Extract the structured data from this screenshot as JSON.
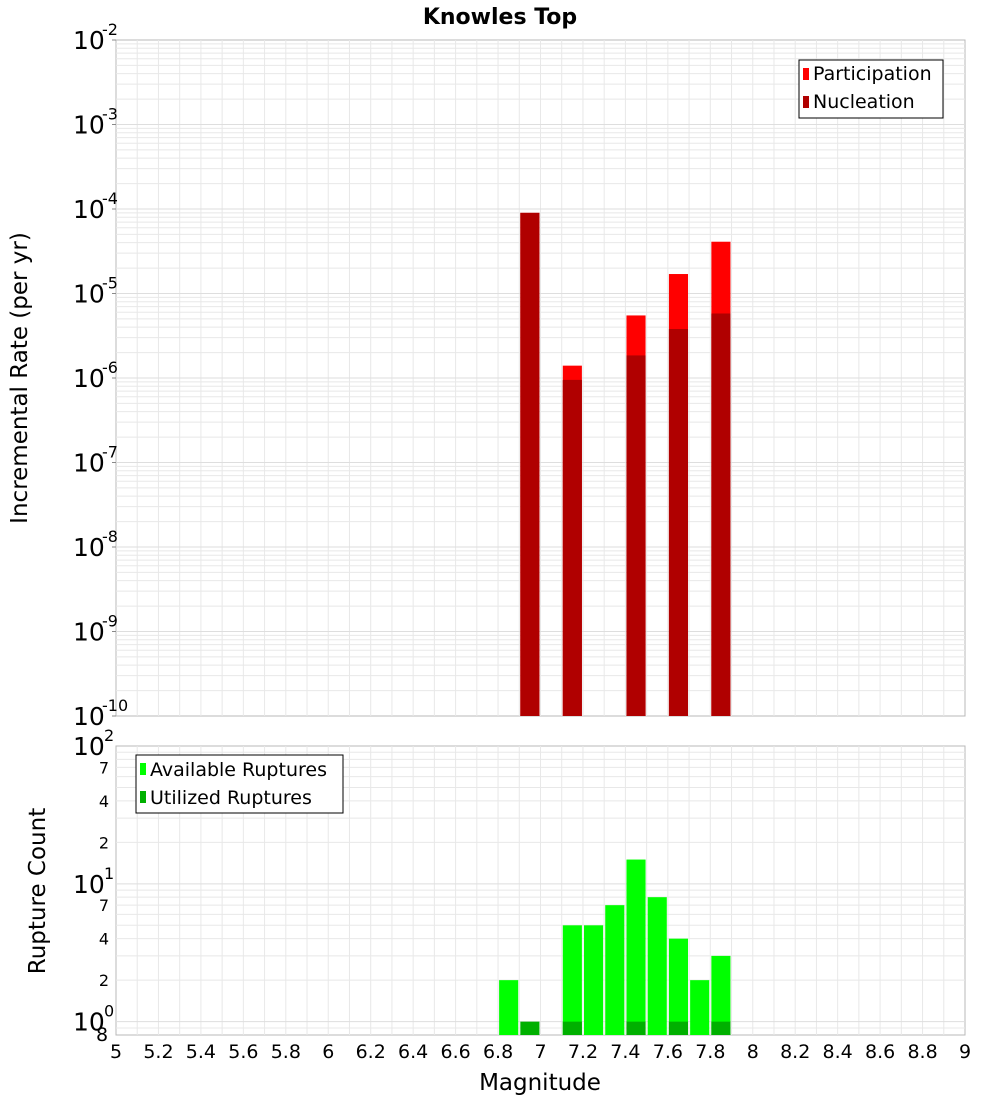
{
  "chart_data": [
    {
      "type": "bar",
      "title": "Knowles Top",
      "ylabel": "Incremental Rate (per yr)",
      "yscale": "log",
      "ylim": [
        1e-10,
        0.01
      ],
      "y_ticks": [
        {
          "base": "10",
          "exp": "-10",
          "value": 1e-10
        },
        {
          "base": "10",
          "exp": "-9",
          "value": 1e-09
        },
        {
          "base": "10",
          "exp": "-8",
          "value": 1e-08
        },
        {
          "base": "10",
          "exp": "-7",
          "value": 1e-07
        },
        {
          "base": "10",
          "exp": "-6",
          "value": 1e-06
        },
        {
          "base": "10",
          "exp": "-5",
          "value": 1e-05
        },
        {
          "base": "10",
          "exp": "-4",
          "value": 0.0001
        },
        {
          "base": "10",
          "exp": "-3",
          "value": 0.001
        },
        {
          "base": "10",
          "exp": "-2",
          "value": 0.01
        }
      ],
      "bar_width": 0.09,
      "grid": true,
      "legend_position": "top-right",
      "series": [
        {
          "name": "Participation",
          "color": "#ff0000",
          "x": [
            6.95,
            7.15,
            7.45,
            7.65,
            7.85
          ],
          "values": [
            9e-05,
            1.4e-06,
            5.5e-06,
            1.7e-05,
            4.1e-05
          ]
        },
        {
          "name": "Nucleation",
          "color": "#b00000",
          "x": [
            6.95,
            7.15,
            7.45,
            7.65,
            7.85
          ],
          "values": [
            9e-05,
            9.5e-07,
            1.85e-06,
            3.8e-06,
            5.8e-06
          ]
        }
      ]
    },
    {
      "type": "bar",
      "ylabel": "Rupture Count",
      "xlabel": "Magnitude",
      "yscale": "log",
      "ylim": [
        0.8,
        100
      ],
      "xlim": [
        5,
        9
      ],
      "x_ticks": [
        "5",
        "5.2",
        "5.4",
        "5.6",
        "5.8",
        "6",
        "6.2",
        "6.4",
        "6.6",
        "6.8",
        "7",
        "7.2",
        "7.4",
        "7.6",
        "7.8",
        "8",
        "8.2",
        "8.4",
        "8.6",
        "8.8",
        "9"
      ],
      "y_major_ticks": [
        {
          "base": "10",
          "exp": "0",
          "value": 1
        },
        {
          "base": "10",
          "exp": "1",
          "value": 10
        },
        {
          "base": "10",
          "exp": "2",
          "value": 100
        }
      ],
      "y_minor_ticks": [
        {
          "label": "8",
          "value": 0.8
        },
        {
          "label": "2",
          "value": 2
        },
        {
          "label": "4",
          "value": 4
        },
        {
          "label": "7",
          "value": 7
        },
        {
          "label": "2",
          "value": 20
        },
        {
          "label": "4",
          "value": 40
        },
        {
          "label": "7",
          "value": 70
        }
      ],
      "bar_width": 0.09,
      "grid": true,
      "legend_position": "top-left",
      "series": [
        {
          "name": "Available Ruptures",
          "color": "#00ff00",
          "x": [
            6.85,
            7.15,
            7.25,
            7.35,
            7.45,
            7.55,
            7.65,
            7.75,
            7.85
          ],
          "values": [
            2,
            5,
            5,
            7,
            15,
            8,
            4,
            2,
            3
          ]
        },
        {
          "name": "Utilized Ruptures",
          "color": "#00b000",
          "x": [
            6.95,
            7.15,
            7.45,
            7.65,
            7.85
          ],
          "values": [
            1,
            1,
            1,
            1,
            1
          ]
        }
      ]
    }
  ]
}
